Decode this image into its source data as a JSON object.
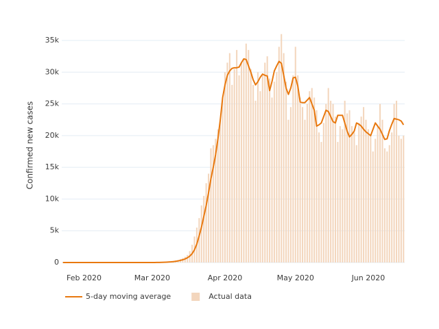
{
  "chart_data": {
    "type": "combo",
    "y_label": "Confirmed new cases",
    "categories": [
      null,
      null,
      null,
      null,
      null,
      null,
      null,
      null,
      null,
      "Feb 2020",
      null,
      null,
      null,
      null,
      null,
      null,
      null,
      null,
      null,
      null,
      null,
      null,
      null,
      null,
      null,
      null,
      null,
      null,
      null,
      null,
      null,
      null,
      null,
      null,
      null,
      null,
      null,
      null,
      "Mar 2020",
      null,
      null,
      null,
      null,
      null,
      null,
      null,
      null,
      null,
      null,
      null,
      null,
      null,
      null,
      null,
      null,
      null,
      null,
      null,
      null,
      null,
      null,
      null,
      null,
      null,
      null,
      null,
      null,
      null,
      null,
      "Apr 2020",
      null,
      null,
      null,
      null,
      null,
      null,
      null,
      null,
      null,
      null,
      null,
      null,
      null,
      null,
      null,
      null,
      null,
      null,
      null,
      null,
      null,
      null,
      null,
      null,
      null,
      null,
      null,
      null,
      null,
      "May 2020",
      null,
      null,
      null,
      null,
      null,
      null,
      null,
      null,
      null,
      null,
      null,
      null,
      null,
      null,
      null,
      null,
      null,
      null,
      null,
      null,
      null,
      null,
      null,
      null,
      null,
      null,
      null,
      null,
      null,
      null,
      "Jun 2020",
      null,
      null,
      null,
      null,
      null,
      null,
      null,
      null,
      null,
      null,
      null,
      null,
      null,
      null,
      null
    ],
    "series": [
      {
        "name": "Actual data",
        "type": "bar",
        "color": "#f3d6bd",
        "values": [
          1,
          0,
          1,
          0,
          1,
          0,
          0,
          0,
          1,
          0,
          0,
          1,
          0,
          0,
          0,
          0,
          0,
          0,
          2,
          0,
          0,
          0,
          0,
          0,
          0,
          0,
          0,
          0,
          0,
          0,
          0,
          0,
          0,
          0,
          0,
          2,
          1,
          6,
          10,
          20,
          25,
          30,
          50,
          70,
          100,
          120,
          160,
          250,
          330,
          420,
          560,
          700,
          900,
          1200,
          1800,
          2800,
          4100,
          5500,
          7000,
          9000,
          10500,
          12500,
          14000,
          18000,
          18500,
          19500,
          21000,
          22500,
          26000,
          30000,
          31500,
          33000,
          28000,
          30500,
          33500,
          29500,
          31500,
          32000,
          34500,
          33500,
          30500,
          28000,
          25500,
          30000,
          27000,
          29500,
          31500,
          32500,
          29000,
          26000,
          28500,
          30000,
          34000,
          36000,
          33000,
          28500,
          22500,
          24500,
          29500,
          34000,
          29500,
          26000,
          24500,
          22500,
          25000,
          27000,
          27500,
          26000,
          24000,
          20500,
          19000,
          22000,
          25000,
          27500,
          25500,
          25000,
          23000,
          19000,
          21500,
          21000,
          25500,
          23500,
          24000,
          21500,
          20500,
          18500,
          22000,
          23000,
          24500,
          22500,
          21000,
          20000,
          17500,
          19500,
          21500,
          25000,
          22500,
          18000,
          17500,
          18500,
          20500,
          25000,
          25500,
          20000,
          19500,
          20000
        ]
      },
      {
        "name": "5-day moving average",
        "type": "line",
        "color": "#e8780e",
        "values": [
          0,
          0,
          0,
          0,
          0,
          0,
          0,
          0,
          0,
          0,
          0,
          0,
          0,
          0,
          0,
          0,
          0,
          0,
          0,
          0,
          0,
          0,
          0,
          0,
          0,
          0,
          0,
          0,
          0,
          0,
          0,
          0,
          0,
          0,
          0,
          0,
          0,
          0,
          2,
          5,
          10,
          15,
          25,
          40,
          60,
          80,
          105,
          140,
          190,
          250,
          330,
          430,
          560,
          750,
          1000,
          1400,
          2000,
          2900,
          4200,
          5600,
          7300,
          9000,
          11000,
          13200,
          15000,
          17000,
          19500,
          22500,
          26000,
          28000,
          29500,
          30200,
          30600,
          30700,
          30700,
          30800,
          31500,
          32100,
          32000,
          31000,
          30000,
          28800,
          28000,
          28500,
          29200,
          29700,
          29500,
          29400,
          27100,
          28500,
          30200,
          31000,
          31700,
          31400,
          29500,
          27500,
          26500,
          27500,
          29100,
          29200,
          27800,
          25300,
          25200,
          25200,
          25600,
          26000,
          25000,
          24000,
          21500,
          21700,
          22000,
          23000,
          24000,
          23800,
          23000,
          22200,
          22000,
          23200,
          23200,
          23200,
          22000,
          20700,
          19800,
          20200,
          20700,
          22000,
          21800,
          21500,
          21000,
          20600,
          20300,
          20000,
          21000,
          22000,
          21500,
          21000,
          20200,
          19400,
          19500,
          20800,
          21800,
          22700,
          22600,
          22500,
          22300,
          21700
        ]
      }
    ],
    "ylim": [
      0,
      37000
    ],
    "yticks": [
      0,
      {
        "value": 5000,
        "label": "5k"
      },
      {
        "value": 10000,
        "label": "10k"
      },
      {
        "value": 15000,
        "label": "15k"
      },
      {
        "value": 20000,
        "label": "20k"
      },
      {
        "value": 25000,
        "label": "25k"
      },
      {
        "value": 30000,
        "label": "30k"
      },
      {
        "value": 35000,
        "label": "35k"
      }
    ],
    "grid": true
  }
}
